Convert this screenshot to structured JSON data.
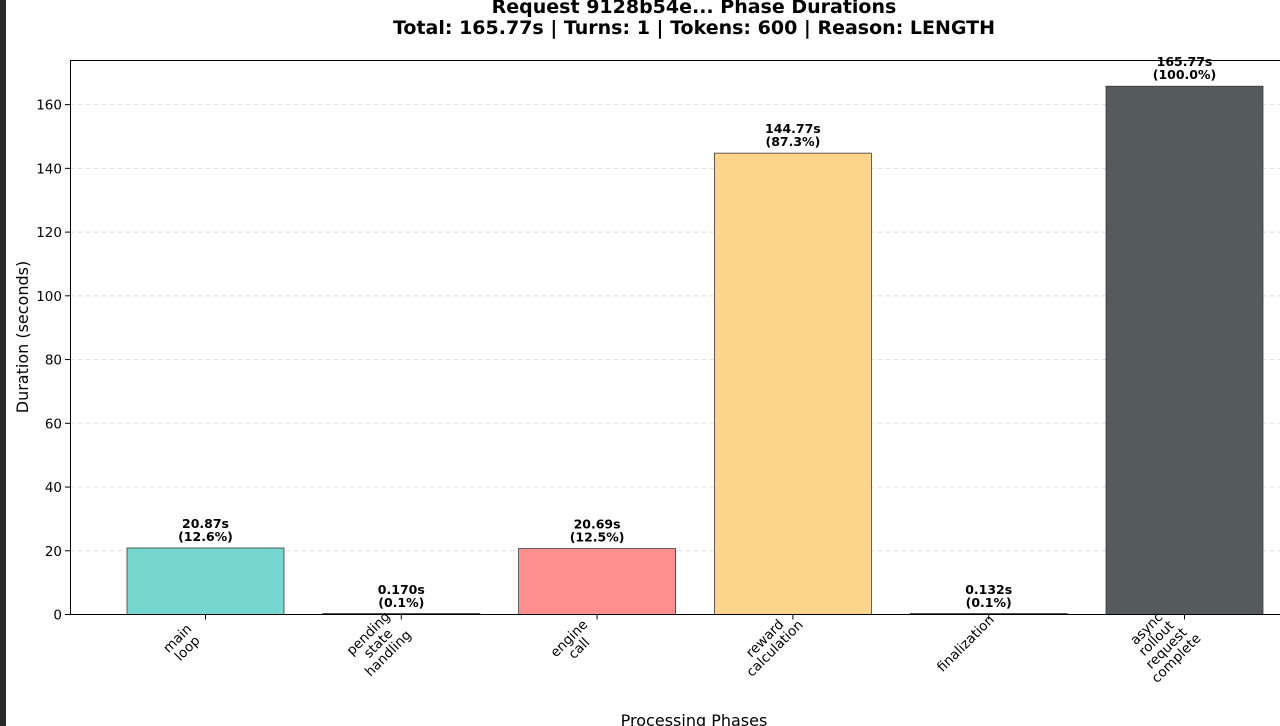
{
  "chart_data": {
    "type": "bar",
    "title": "Request 9128b54e... Phase Durations",
    "subtitle": "Total: 165.77s | Turns: 1 | Tokens: 600 | Reason: LENGTH",
    "xlabel": "Processing Phases",
    "ylabel": "Duration (seconds)",
    "ylim": [
      0,
      174
    ],
    "yticks": [
      "0",
      "20",
      "40",
      "60",
      "80",
      "100",
      "120",
      "140",
      "160"
    ],
    "grid": true,
    "categories": [
      [
        "main",
        "loop"
      ],
      [
        "pending",
        "state",
        "handling"
      ],
      [
        "engine",
        "call"
      ],
      [
        "reward",
        "calculation"
      ],
      [
        "finalization"
      ],
      [
        "async",
        "rollout",
        "request",
        "complete"
      ]
    ],
    "values": [
      20.87,
      0.17,
      20.69,
      144.77,
      0.132,
      165.77
    ],
    "data_labels": [
      [
        "20.87s",
        "(12.6%)"
      ],
      [
        "0.170s",
        "(0.1%)"
      ],
      [
        "20.69s",
        "(12.5%)"
      ],
      [
        "144.77s",
        "(87.3%)"
      ],
      [
        "0.132s",
        "(0.1%)"
      ],
      [
        "165.77s",
        "(100.0%)"
      ]
    ],
    "colors": [
      "#76d7d0",
      "#5f6b73",
      "#ff8f8f",
      "#fdd48b",
      "#5f6b73",
      "#555a5c"
    ]
  }
}
